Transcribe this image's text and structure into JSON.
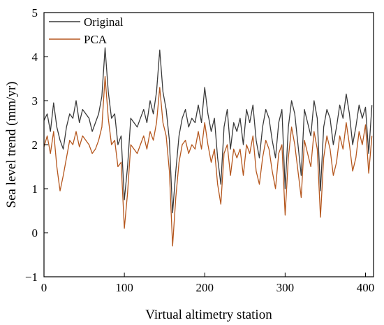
{
  "chart_data": {
    "type": "line",
    "title": "",
    "xlabel": "Virtual altimetry station",
    "ylabel": "Sea level trend (mm/yr)",
    "xlim": [
      0,
      410
    ],
    "ylim": [
      -1,
      5
    ],
    "xticks": [
      0,
      100,
      200,
      300,
      400
    ],
    "yticks": [
      -1,
      0,
      1,
      2,
      3,
      4,
      5
    ],
    "grid": false,
    "legend_position": "top-left",
    "series": [
      {
        "name": "Original",
        "color": "#3a3a3a",
        "x": [
          0,
          4,
          8,
          12,
          16,
          20,
          24,
          28,
          32,
          36,
          40,
          44,
          48,
          52,
          56,
          60,
          64,
          68,
          72,
          76,
          80,
          84,
          88,
          92,
          96,
          100,
          104,
          108,
          112,
          116,
          120,
          124,
          128,
          132,
          136,
          140,
          144,
          148,
          152,
          156,
          160,
          164,
          168,
          172,
          176,
          180,
          184,
          188,
          192,
          196,
          200,
          204,
          208,
          212,
          216,
          220,
          224,
          228,
          232,
          236,
          240,
          244,
          248,
          252,
          256,
          260,
          264,
          268,
          272,
          276,
          280,
          284,
          288,
          292,
          296,
          300,
          304,
          308,
          312,
          316,
          320,
          324,
          328,
          332,
          336,
          340,
          344,
          348,
          352,
          356,
          360,
          364,
          368,
          372,
          376,
          380,
          384,
          388,
          392,
          396,
          400,
          404,
          408
        ],
        "values": [
          2.55,
          2.7,
          2.3,
          2.95,
          2.4,
          2.1,
          1.9,
          2.4,
          2.7,
          2.6,
          3.0,
          2.5,
          2.8,
          2.7,
          2.6,
          2.3,
          2.5,
          2.7,
          3.1,
          4.2,
          3.2,
          2.6,
          2.7,
          2.0,
          2.2,
          0.75,
          1.5,
          2.6,
          2.5,
          2.4,
          2.6,
          2.8,
          2.5,
          3.0,
          2.7,
          3.2,
          4.15,
          3.2,
          2.8,
          2.1,
          0.45,
          1.4,
          2.2,
          2.6,
          2.8,
          2.4,
          2.6,
          2.5,
          2.9,
          2.5,
          3.3,
          2.7,
          2.3,
          2.6,
          1.7,
          1.1,
          2.4,
          2.8,
          1.9,
          2.5,
          2.3,
          2.6,
          2.0,
          2.8,
          2.5,
          2.9,
          2.1,
          1.7,
          2.4,
          2.8,
          2.6,
          2.1,
          1.7,
          2.5,
          2.8,
          1.0,
          2.4,
          3.0,
          2.7,
          2.0,
          1.3,
          2.8,
          2.5,
          2.2,
          3.0,
          2.6,
          0.95,
          2.4,
          2.8,
          2.6,
          2.0,
          2.4,
          2.9,
          2.6,
          3.15,
          2.7,
          2.0,
          2.4,
          2.9,
          2.6,
          2.85,
          1.8,
          2.9
        ]
      },
      {
        "name": "PCA",
        "color": "#b5571e",
        "x": [
          0,
          4,
          8,
          12,
          16,
          20,
          24,
          28,
          32,
          36,
          40,
          44,
          48,
          52,
          56,
          60,
          64,
          68,
          72,
          76,
          80,
          84,
          88,
          92,
          96,
          100,
          104,
          108,
          112,
          116,
          120,
          124,
          128,
          132,
          136,
          140,
          144,
          148,
          152,
          156,
          160,
          164,
          168,
          172,
          176,
          180,
          184,
          188,
          192,
          196,
          200,
          204,
          208,
          212,
          216,
          220,
          224,
          228,
          232,
          236,
          240,
          244,
          248,
          252,
          256,
          260,
          264,
          268,
          272,
          276,
          280,
          284,
          288,
          292,
          296,
          300,
          304,
          308,
          312,
          316,
          320,
          324,
          328,
          332,
          336,
          340,
          344,
          348,
          352,
          356,
          360,
          364,
          368,
          372,
          376,
          380,
          384,
          388,
          392,
          396,
          400,
          404,
          408
        ],
        "values": [
          1.95,
          2.2,
          1.8,
          2.3,
          1.5,
          0.95,
          1.3,
          1.7,
          2.1,
          2.0,
          2.3,
          1.95,
          2.2,
          2.1,
          2.0,
          1.8,
          1.9,
          2.1,
          2.4,
          3.55,
          2.6,
          2.0,
          2.1,
          1.5,
          1.6,
          0.1,
          0.9,
          2.0,
          1.9,
          1.8,
          2.0,
          2.2,
          1.9,
          2.3,
          2.1,
          2.5,
          3.3,
          2.5,
          2.2,
          1.4,
          -0.3,
          0.8,
          1.6,
          2.0,
          2.1,
          1.8,
          2.0,
          1.9,
          2.3,
          1.9,
          2.5,
          2.0,
          1.6,
          1.9,
          1.1,
          0.65,
          1.8,
          2.0,
          1.3,
          1.9,
          1.7,
          1.9,
          1.3,
          2.0,
          1.8,
          2.2,
          1.4,
          1.1,
          1.7,
          2.1,
          1.9,
          1.4,
          1.0,
          1.8,
          2.0,
          0.4,
          1.7,
          2.4,
          2.0,
          1.4,
          0.8,
          2.1,
          1.8,
          1.5,
          2.3,
          1.9,
          0.35,
          1.7,
          2.2,
          1.9,
          1.3,
          1.6,
          2.2,
          1.9,
          2.5,
          2.0,
          1.4,
          1.7,
          2.3,
          2.0,
          2.45,
          1.35,
          2.2
        ]
      }
    ]
  }
}
